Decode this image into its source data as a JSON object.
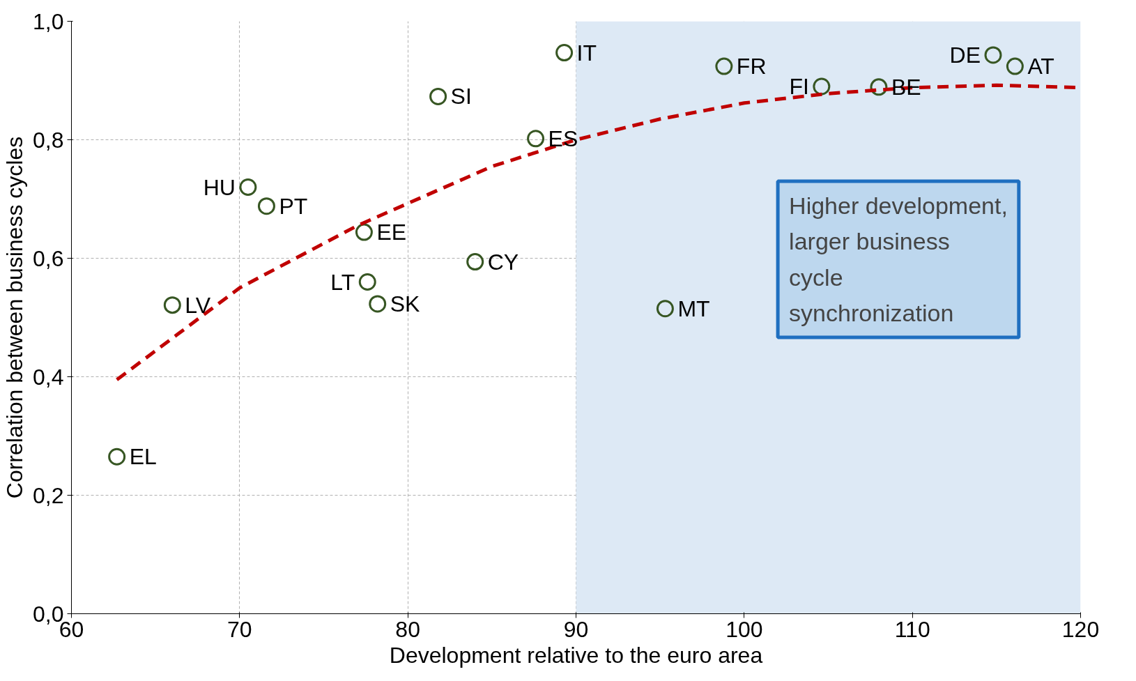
{
  "chart_data": {
    "type": "scatter",
    "xlabel": "Development relative to the euro area",
    "ylabel": "Correlation between business cycles",
    "xlim": [
      60,
      120
    ],
    "ylim": [
      0,
      1
    ],
    "xticks": [
      60,
      70,
      80,
      90,
      100,
      110,
      120
    ],
    "yticks": [
      {
        "value": 0,
        "label": "0,0"
      },
      {
        "value": 0.2,
        "label": "0,2"
      },
      {
        "value": 0.4,
        "label": "0,4"
      },
      {
        "value": 0.6,
        "label": "0,6"
      },
      {
        "value": 0.8,
        "label": "0,8"
      },
      {
        "value": 1.0,
        "label": "1,0"
      }
    ],
    "grid": true,
    "marker": "circle",
    "series": [
      {
        "color": "#375623",
        "x": [
          62.7,
          66.0,
          70.5,
          71.6,
          77.4,
          77.6,
          78.2,
          81.8,
          84.0,
          87.6,
          89.3,
          95.3,
          98.8,
          104.6,
          108.0,
          114.8,
          116.1
        ],
        "values": [
          0.265,
          0.521,
          0.72,
          0.688,
          0.644,
          0.56,
          0.523,
          0.873,
          0.594,
          0.802,
          0.947,
          0.515,
          0.924,
          0.89,
          0.889,
          0.943,
          0.924
        ],
        "value_labels": [
          "EL",
          "LV",
          "HU",
          "PT",
          "EE",
          "LT",
          "SK",
          "SI",
          "CY",
          "ES",
          "IT",
          "MT",
          "FR",
          "FI",
          "BE",
          "DE",
          "AT"
        ]
      },
      {
        "type": "line",
        "color": "#c00000",
        "line_style": "dashed",
        "marker": "none",
        "x": [
          62.7,
          66,
          70,
          74,
          77,
          81,
          85,
          90,
          95,
          100,
          105,
          110,
          115,
          120
        ],
        "values": [
          0.395,
          0.465,
          0.55,
          0.61,
          0.655,
          0.705,
          0.755,
          0.8,
          0.835,
          0.862,
          0.878,
          0.888,
          0.892,
          0.888
        ]
      }
    ],
    "bands": [
      {
        "axis": "x",
        "from": 90,
        "to": 120,
        "color": "#dde9f5"
      }
    ],
    "annotations": [
      "Higher development, larger business cycle synchronization"
    ]
  }
}
